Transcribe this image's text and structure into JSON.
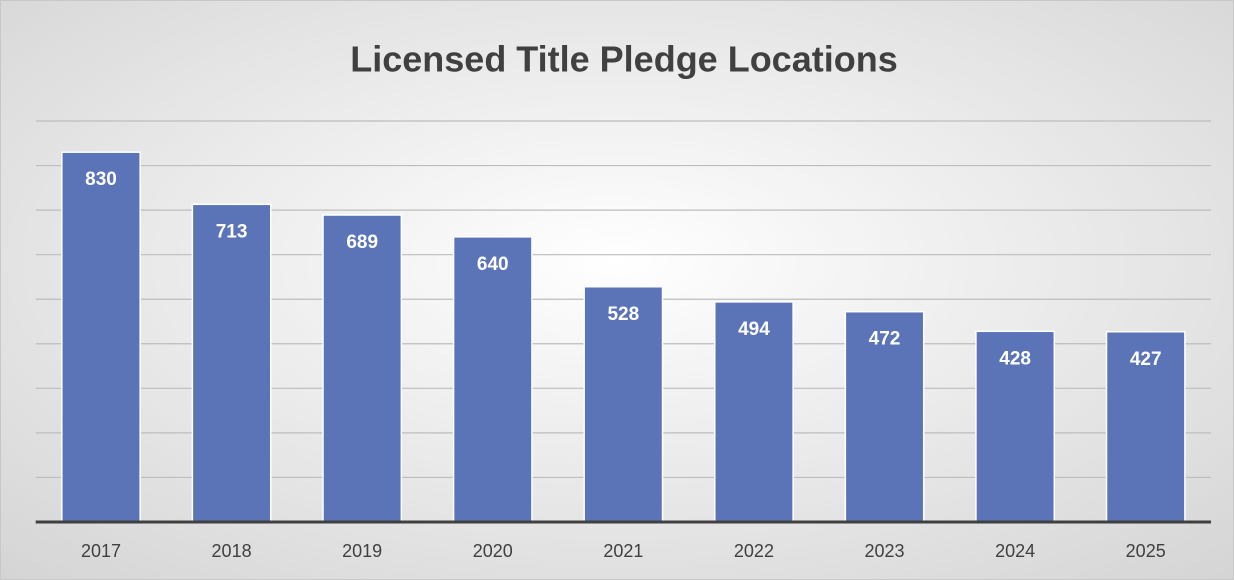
{
  "chart_data": {
    "type": "bar",
    "title": "Licensed Title Pledge Locations",
    "categories": [
      "2017",
      "2018",
      "2019",
      "2020",
      "2021",
      "2022",
      "2023",
      "2024",
      "2025"
    ],
    "values": [
      830,
      713,
      689,
      640,
      528,
      494,
      472,
      428,
      427
    ],
    "color": "#5b74b8",
    "ylim": [
      0,
      900
    ],
    "yticks": [
      0,
      100,
      200,
      300,
      400,
      500,
      600,
      700,
      800,
      900
    ],
    "grid": true
  }
}
